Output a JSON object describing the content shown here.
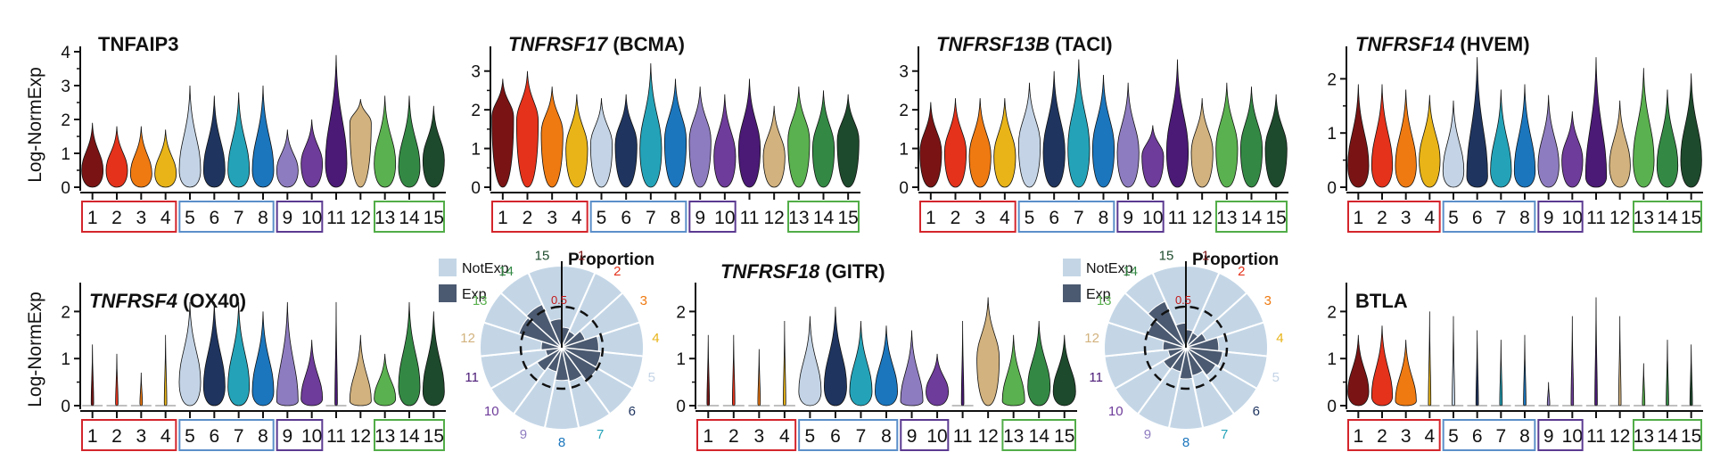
{
  "figure": {
    "ylabel": "Log-NormExp",
    "categories": [
      "1",
      "2",
      "3",
      "4",
      "5",
      "6",
      "7",
      "8",
      "9",
      "10",
      "11",
      "12",
      "13",
      "14",
      "15"
    ],
    "cluster_colors": [
      "#7a1414",
      "#e4321b",
      "#ef7a12",
      "#e8b418",
      "#c4d4e6",
      "#1f3560",
      "#24a3b8",
      "#1b76bd",
      "#8e7cc0",
      "#6e3c9a",
      "#4a1a76",
      "#d2b27e",
      "#5ab14f",
      "#338944",
      "#1d4a2c"
    ],
    "group_colors": [
      "#d4252c",
      "#5b8fc9",
      "#5b3a91",
      "#52ad48"
    ],
    "groups": [
      [
        1,
        4
      ],
      [
        5,
        8
      ],
      [
        9,
        10
      ],
      [
        13,
        15
      ]
    ]
  },
  "chart_data": [
    {
      "type": "violin",
      "title_italic": "",
      "title_rest": "TNFAIP3",
      "categories": [
        "1",
        "2",
        "3",
        "4",
        "5",
        "6",
        "7",
        "8",
        "9",
        "10",
        "11",
        "12",
        "13",
        "14",
        "15"
      ],
      "ylim": [
        0,
        4
      ],
      "yticks": [
        "0",
        "1",
        "2",
        "3",
        "4"
      ],
      "max": [
        1.9,
        1.8,
        1.8,
        1.7,
        3.0,
        2.7,
        2.8,
        3.0,
        1.7,
        2.0,
        3.9,
        2.6,
        2.7,
        2.7,
        2.4
      ],
      "mode": [
        0.5,
        0.5,
        0.4,
        0.4,
        0.5,
        0.5,
        0.5,
        0.5,
        0.5,
        0.7,
        0.7,
        1.9,
        0.7,
        0.6,
        0.8
      ]
    },
    {
      "type": "violin",
      "title_italic": "TNFRSF17",
      "title_rest": " (BCMA)",
      "categories": [
        "1",
        "2",
        "3",
        "4",
        "5",
        "6",
        "7",
        "8",
        "9",
        "10",
        "11",
        "12",
        "13",
        "14",
        "15"
      ],
      "ylim": [
        0,
        3.5
      ],
      "yticks": [
        "0",
        "1",
        "2",
        "3"
      ],
      "max": [
        2.8,
        3.0,
        2.6,
        2.4,
        2.3,
        2.4,
        3.2,
        2.8,
        2.6,
        2.4,
        2.8,
        2.1,
        2.6,
        2.5,
        2.4
      ],
      "mode": [
        1.8,
        1.7,
        1.4,
        1.0,
        1.1,
        1.1,
        1.0,
        1.2,
        1.2,
        0.8,
        1.0,
        0.8,
        1.2,
        1.0,
        1.2
      ]
    },
    {
      "type": "violin",
      "title_italic": "TNFRSF13B",
      "title_rest": " (TACI)",
      "categories": [
        "1",
        "2",
        "3",
        "4",
        "5",
        "6",
        "7",
        "8",
        "9",
        "10",
        "11",
        "12",
        "13",
        "14",
        "15"
      ],
      "ylim": [
        0,
        3.5
      ],
      "yticks": [
        "0",
        "1",
        "2",
        "3"
      ],
      "max": [
        2.2,
        2.3,
        2.3,
        2.3,
        2.7,
        3.0,
        3.3,
        2.9,
        2.7,
        1.6,
        3.3,
        2.3,
        2.7,
        2.6,
        2.4
      ],
      "mode": [
        0.9,
        0.9,
        0.8,
        0.8,
        1.1,
        0.9,
        1.0,
        1.0,
        0.9,
        0.8,
        0.9,
        0.9,
        1.0,
        1.0,
        1.0
      ]
    },
    {
      "type": "violin",
      "title_italic": "TNFRSF14",
      "title_rest": " (HVEM)",
      "categories": [
        "1",
        "2",
        "3",
        "4",
        "5",
        "6",
        "7",
        "8",
        "9",
        "10",
        "11",
        "12",
        "13",
        "14",
        "15"
      ],
      "ylim": [
        0,
        2.5
      ],
      "yticks": [
        "0",
        "1",
        "2"
      ],
      "max": [
        1.9,
        1.9,
        1.8,
        1.7,
        1.6,
        2.4,
        1.8,
        1.9,
        1.7,
        1.4,
        2.4,
        1.6,
        2.2,
        1.8,
        2.1
      ],
      "mode": [
        0.4,
        0.4,
        0.4,
        0.5,
        0.3,
        0.2,
        0.3,
        0.3,
        0.4,
        0.5,
        0.2,
        0.4,
        0.5,
        0.4,
        0.5
      ]
    },
    {
      "type": "violin",
      "title_italic": "TNFRSF4",
      "title_rest": " (OX40)",
      "categories": [
        "1",
        "2",
        "3",
        "4",
        "5",
        "6",
        "7",
        "8",
        "9",
        "10",
        "11",
        "12",
        "13",
        "14",
        "15"
      ],
      "ylim": [
        0,
        2.5
      ],
      "yticks": [
        "0",
        "1",
        "2"
      ],
      "max": [
        1.3,
        1.1,
        0.7,
        1.5,
        2.2,
        2.2,
        2.2,
        2.0,
        2.2,
        1.4,
        2.2,
        1.5,
        1.1,
        2.2,
        2.0
      ],
      "mode": [
        0.05,
        0.05,
        0.05,
        0.05,
        0.5,
        0.4,
        0.4,
        0.3,
        0.1,
        0.15,
        0.05,
        0.1,
        0.15,
        0.4,
        0.3
      ]
    },
    {
      "type": "violin",
      "title_italic": "TNFRSF18",
      "title_rest": " (GITR)",
      "categories": [
        "1",
        "2",
        "3",
        "4",
        "5",
        "6",
        "7",
        "8",
        "9",
        "10",
        "11",
        "12",
        "13",
        "14",
        "15"
      ],
      "ylim": [
        0,
        2.5
      ],
      "yticks": [
        "0",
        "1",
        "2"
      ],
      "max": [
        1.5,
        1.5,
        1.2,
        1.8,
        1.9,
        2.1,
        1.8,
        1.7,
        1.6,
        1.1,
        1.8,
        2.3,
        1.5,
        1.8,
        1.5
      ],
      "mode": [
        0.05,
        0.05,
        0.05,
        0.05,
        0.3,
        0.4,
        0.3,
        0.3,
        0.1,
        0.3,
        0.05,
        1.0,
        0.1,
        0.4,
        0.3
      ]
    },
    {
      "type": "violin",
      "title_italic": "",
      "title_rest": "BTLA",
      "categories": [
        "1",
        "2",
        "3",
        "4",
        "5",
        "6",
        "7",
        "8",
        "9",
        "10",
        "11",
        "12",
        "13",
        "14",
        "15"
      ],
      "ylim": [
        0,
        2.5
      ],
      "yticks": [
        "0",
        "1",
        "2"
      ],
      "max": [
        1.5,
        1.7,
        1.4,
        2.0,
        1.9,
        1.6,
        1.4,
        1.5,
        0.5,
        1.9,
        2.3,
        1.9,
        0.9,
        1.4,
        1.3
      ],
      "mode": [
        0.3,
        0.2,
        0.1,
        0.03,
        0.03,
        0.03,
        0.03,
        0.03,
        0.03,
        0.03,
        0.03,
        0.03,
        0.03,
        0.03,
        0.03
      ]
    },
    {
      "type": "polar-bar",
      "title": "Proportion",
      "legend": [
        "NotExp",
        "Exp"
      ],
      "radial_tick": "0.5",
      "categories": [
        "1",
        "2",
        "3",
        "4",
        "5",
        "6",
        "7",
        "8",
        "9",
        "10",
        "11",
        "12",
        "13",
        "14",
        "15"
      ],
      "exp": [
        0.25,
        0.22,
        0.3,
        0.45,
        0.48,
        0.5,
        0.42,
        0.4,
        0.3,
        0.35,
        0.2,
        0.25,
        0.55,
        0.58,
        0.35
      ]
    },
    {
      "type": "polar-bar",
      "title": "Proportion",
      "legend": [
        "NotExp",
        "Exp"
      ],
      "radial_tick": "0.5",
      "categories": [
        "1",
        "2",
        "3",
        "4",
        "5",
        "6",
        "7",
        "8",
        "9",
        "10",
        "11",
        "12",
        "13",
        "14",
        "15"
      ],
      "exp": [
        0.22,
        0.2,
        0.26,
        0.4,
        0.45,
        0.42,
        0.35,
        0.38,
        0.3,
        0.32,
        0.22,
        0.28,
        0.5,
        0.62,
        0.3
      ]
    }
  ]
}
